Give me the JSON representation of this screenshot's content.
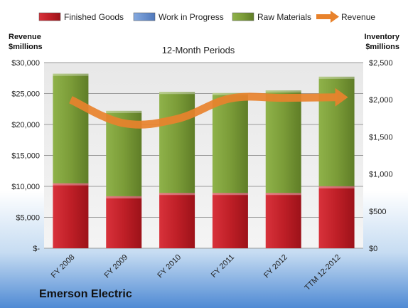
{
  "chart_data": {
    "type": "bar",
    "stacked": true,
    "subtitle": "12-Month Periods",
    "company": "Emerson Electric",
    "categories": [
      "FY 2008",
      "FY 2009",
      "FY 2010",
      "FY 2011",
      "FY 2012",
      "TTM 12-2012"
    ],
    "left_axis": {
      "title_line1": "Revenue",
      "title_line2": "$millions",
      "range": [
        0,
        30000
      ],
      "ticks": [
        {
          "value": 0,
          "label": "$-"
        },
        {
          "value": 5000,
          "label": "$5,000"
        },
        {
          "value": 10000,
          "label": "$10,000"
        },
        {
          "value": 15000,
          "label": "$15,000"
        },
        {
          "value": 20000,
          "label": "$20,000"
        },
        {
          "value": 25000,
          "label": "$25,000"
        },
        {
          "value": 30000,
          "label": "$30,000"
        }
      ]
    },
    "right_axis": {
      "title_line1": "Inventory",
      "title_line2": "$millions",
      "range": [
        0,
        2500
      ],
      "ticks": [
        {
          "value": 0,
          "label": "$0"
        },
        {
          "value": 500,
          "label": "$500"
        },
        {
          "value": 1000,
          "label": "$1,000"
        },
        {
          "value": 1500,
          "label": "$1,500"
        },
        {
          "value": 2000,
          "label": "$2,000"
        },
        {
          "value": 2500,
          "label": "$2,500"
        }
      ]
    },
    "series": [
      {
        "name": "Finished Goods",
        "axis": "right",
        "kind": "bar",
        "color": "#c0202a",
        "values": [
          875,
          700,
          745,
          745,
          745,
          835
        ]
      },
      {
        "name": "Work in Progress",
        "axis": "right",
        "kind": "bar",
        "color": "#6f97d3",
        "values": [
          0,
          0,
          0,
          0,
          0,
          0
        ]
      },
      {
        "name": "Raw Materials",
        "axis": "right",
        "kind": "bar",
        "color": "#7e9f3b",
        "values": [
          1475,
          1150,
          1360,
          1345,
          1380,
          1475
        ]
      },
      {
        "name": "Revenue",
        "axis": "left",
        "kind": "line",
        "color": "#e8822c",
        "values": [
          24000,
          20200,
          20900,
          24200,
          24300,
          24400
        ]
      }
    ],
    "grid": true,
    "legend_position": "top"
  }
}
